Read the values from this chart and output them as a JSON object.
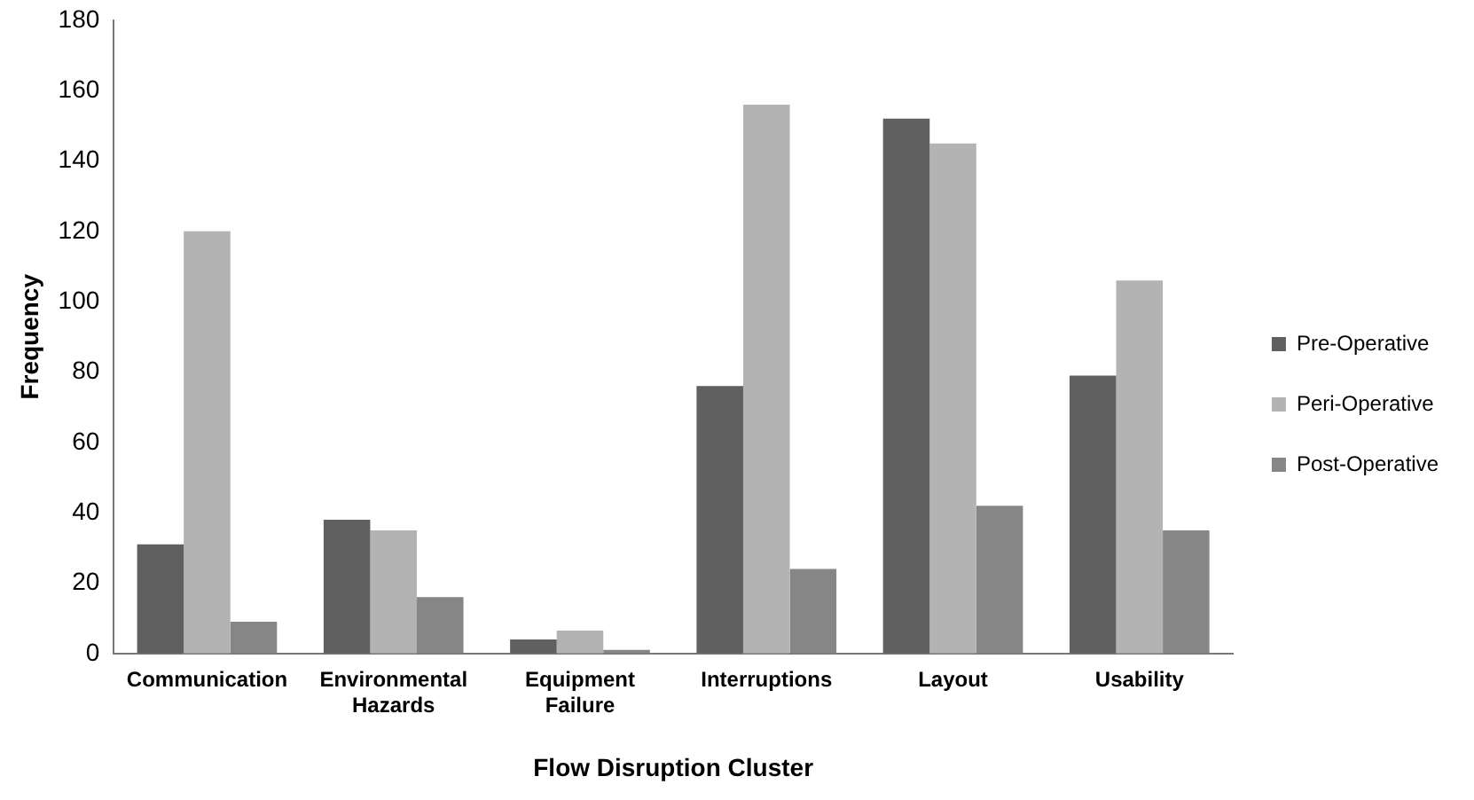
{
  "chart_data": {
    "type": "bar",
    "xlabel": "Flow Disruption Cluster",
    "ylabel": "Frequency",
    "categories": [
      "Communication",
      "Environmental Hazards",
      "Equipment Failure",
      "Interruptions",
      "Layout",
      "Usability"
    ],
    "series": [
      {
        "name": "Pre-Operative",
        "color": "#606060",
        "values": [
          31,
          38,
          4,
          76,
          152,
          79
        ]
      },
      {
        "name": "Peri-Operative",
        "color": "#b3b3b3",
        "values": [
          120,
          35,
          6.5,
          156,
          145,
          106
        ]
      },
      {
        "name": "Post-Operative",
        "color": "#868686",
        "values": [
          9,
          16,
          1,
          24,
          42,
          35
        ]
      }
    ],
    "ylim": [
      0,
      180
    ],
    "yticks": [
      0,
      20,
      40,
      60,
      80,
      100,
      120,
      140,
      160,
      180
    ],
    "grid": false,
    "legend": "right"
  }
}
